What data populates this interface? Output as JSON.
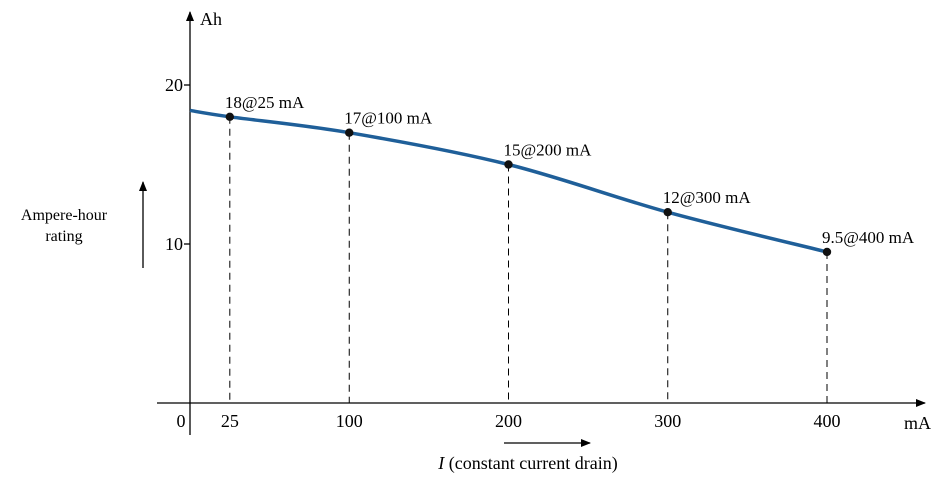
{
  "chart_data": {
    "type": "line",
    "x_unit": "mA",
    "y_unit": "Ah",
    "xlim": [
      0,
      400
    ],
    "ylim": [
      0,
      20
    ],
    "x_ticks": [
      "0",
      "25",
      "100",
      "200",
      "300",
      "400"
    ],
    "x_tick_values": [
      0,
      25,
      100,
      200,
      300,
      400
    ],
    "y_ticks": [
      "10",
      "20"
    ],
    "y_tick_values": [
      10,
      20
    ],
    "ylabel_line1": "Ampere-hour",
    "ylabel_line2": "rating",
    "xlabel_symbol": "I",
    "xlabel_rest": " (constant current drain)",
    "curve": {
      "x": [
        0,
        25,
        100,
        200,
        300,
        400
      ],
      "y": [
        18.4,
        18.0,
        17.0,
        15.0,
        12.0,
        9.5
      ],
      "color": "#1f5f99"
    },
    "points": [
      {
        "x": 25,
        "y": 18,
        "label": "18@25 mA"
      },
      {
        "x": 100,
        "y": 17,
        "label": "17@100 mA"
      },
      {
        "x": 200,
        "y": 15,
        "label": "15@200 mA"
      },
      {
        "x": 300,
        "y": 12,
        "label": "12@300 mA"
      },
      {
        "x": 400,
        "y": 9.5,
        "label": "9.5@400 mA"
      }
    ],
    "grid": false,
    "legend": "none"
  }
}
